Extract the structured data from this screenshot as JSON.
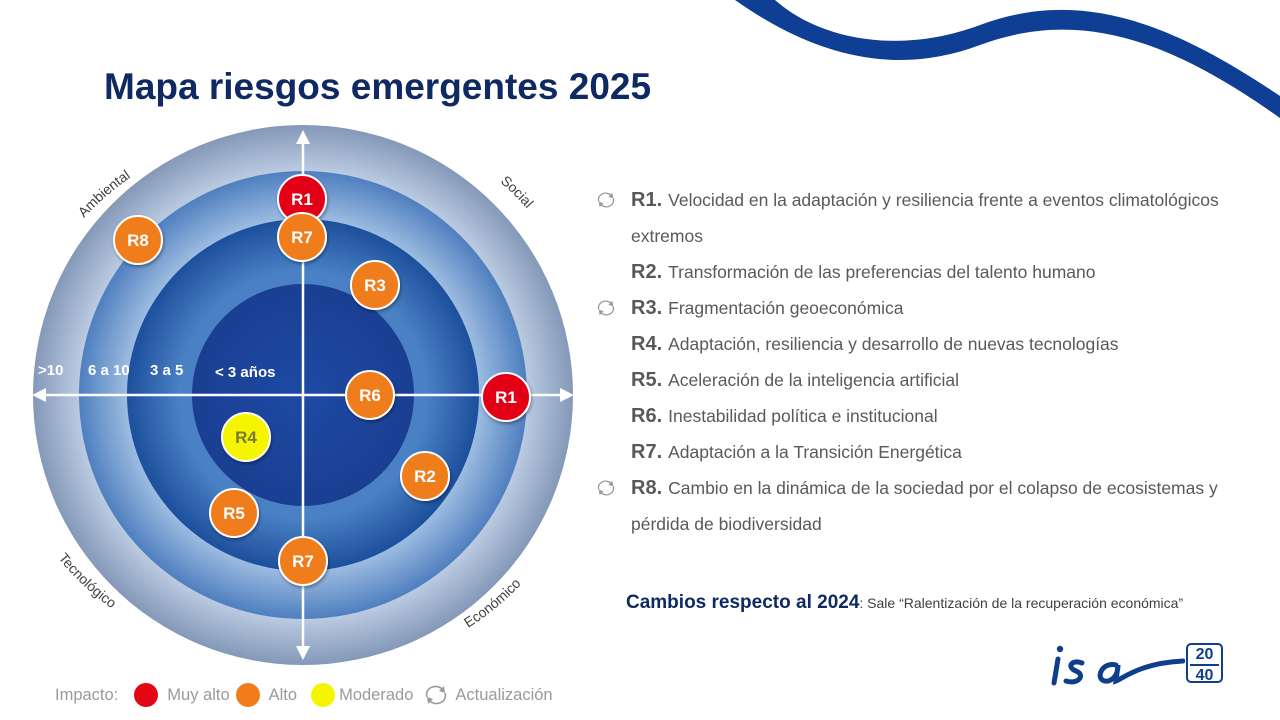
{
  "title": "Mapa riesgos emergentes 2025",
  "radar": {
    "quadrants": [
      "Ambiental",
      "Social",
      "Tecnológico",
      "Económico"
    ],
    "horizons": [
      ">10",
      "6 a 10",
      "3 a 5",
      "< 3 años"
    ],
    "markers": [
      {
        "code": "R1",
        "impact": "Muy alto"
      },
      {
        "code": "R7",
        "impact": "Alto"
      },
      {
        "code": "R8",
        "impact": "Alto"
      },
      {
        "code": "R3",
        "impact": "Alto"
      },
      {
        "code": "R6",
        "impact": "Alto"
      },
      {
        "code": "R1",
        "impact": "Muy alto"
      },
      {
        "code": "R4",
        "impact": "Moderado"
      },
      {
        "code": "R2",
        "impact": "Alto"
      },
      {
        "code": "R5",
        "impact": "Alto"
      },
      {
        "code": "R7",
        "impact": "Alto"
      }
    ]
  },
  "risks": [
    {
      "code": "R1.",
      "text": "Velocidad en la adaptación y resiliencia frente a eventos climatológicos extremos",
      "updated": true
    },
    {
      "code": "R2.",
      "text": "Transformación de las preferencias del talento humano",
      "updated": false
    },
    {
      "code": "R3.",
      "text": "Fragmentación geoeconómica",
      "updated": true
    },
    {
      "code": "R4.",
      "text": "Adaptación, resiliencia y desarrollo de nuevas tecnologías",
      "updated": false
    },
    {
      "code": "R5.",
      "text": "Aceleración de la inteligencia artificial",
      "updated": false
    },
    {
      "code": "R6.",
      "text": "Inestabilidad política e institucional",
      "updated": false
    },
    {
      "code": "R7.",
      "text": "Adaptación a la Transición Energética",
      "updated": false
    },
    {
      "code": "R8.",
      "text": "Cambio en la dinámica de la sociedad por el colapso de ecosistemas y pérdida de biodiversidad",
      "updated": true
    }
  ],
  "changes": {
    "label": "Cambios respecto al 2024",
    "text": ": Sale “Ralentización de la recuperación económica”"
  },
  "legend": {
    "label": "Impacto:",
    "items": [
      {
        "name": "Muy alto",
        "color": "#e30613"
      },
      {
        "name": "Alto",
        "color": "#f07d1a"
      },
      {
        "name": "Moderado",
        "color": "#f5f500"
      }
    ],
    "update_label": "Actualización"
  },
  "logo": {
    "name": "isa",
    "year_top": "20",
    "year_bottom": "40"
  },
  "colors": {
    "very_high": "#e30613",
    "high": "#f07d1a",
    "moderate": "#f5f500",
    "brand": "#0f2a63"
  }
}
